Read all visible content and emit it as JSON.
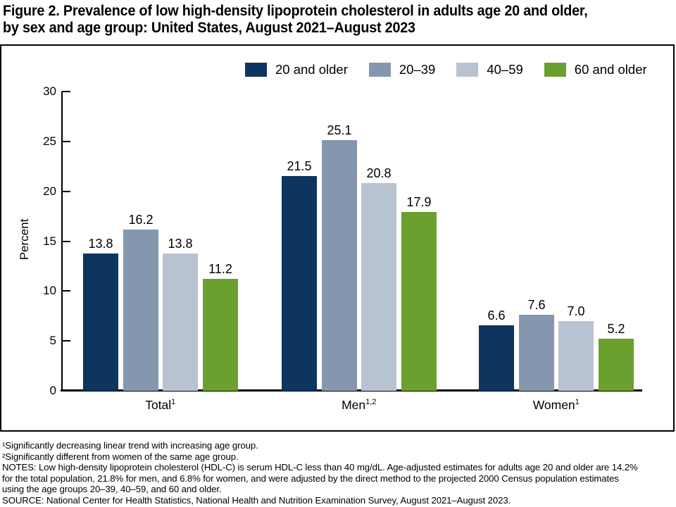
{
  "figure": {
    "title_line1": "Figure 2. Prevalence of low high-density lipoprotein cholesterol in adults age 20 and older,",
    "title_line2": "by sex and age group: United States, August 2021–August 2023"
  },
  "chart_data": {
    "type": "bar",
    "title": "Prevalence of low high-density lipoprotein cholesterol in adults age 20 and older, by sex and age group: United States, August 2021–August 2023",
    "ylabel": "Percent",
    "xlabel": "",
    "ylim": [
      0,
      30
    ],
    "yticks": [
      0,
      5,
      10,
      15,
      20,
      25,
      30
    ],
    "grid": false,
    "legend_position": "top",
    "categories": [
      {
        "label": "Total",
        "sup": "1"
      },
      {
        "label": "Men",
        "sup": "1,2"
      },
      {
        "label": "Women",
        "sup": "1"
      }
    ],
    "series": [
      {
        "name": "20 and older",
        "color": "#0e355f",
        "values": [
          13.8,
          21.5,
          6.6
        ]
      },
      {
        "name": "20–39",
        "color": "#8497ae",
        "values": [
          16.2,
          25.1,
          7.6
        ]
      },
      {
        "name": "40–59",
        "color": "#b8c3d2",
        "values": [
          13.8,
          20.8,
          7.0
        ]
      },
      {
        "name": "60 and older",
        "color": "#6aa02e",
        "values": [
          11.2,
          17.9,
          5.2
        ]
      }
    ]
  },
  "footnotes": {
    "lines": [
      "¹Significantly decreasing linear trend with increasing age group.",
      "²Significantly different from women of the same age group.",
      "NOTES: Low high-density lipoprotein cholesterol (HDL-C) is serum HDL-C less than 40 mg/dL. Age-adjusted estimates for adults age 20 and older are 14.2%",
      "for the total population, 21.8% for men, and 6.8% for women, and were adjusted by the direct method to the projected 2000 Census population estimates",
      "using the age groups 20–39, 40–59, and 60 and older.",
      "SOURCE: National Center for Health Statistics, National Health and Nutrition Examination Survey, August 2021–August 2023."
    ]
  }
}
